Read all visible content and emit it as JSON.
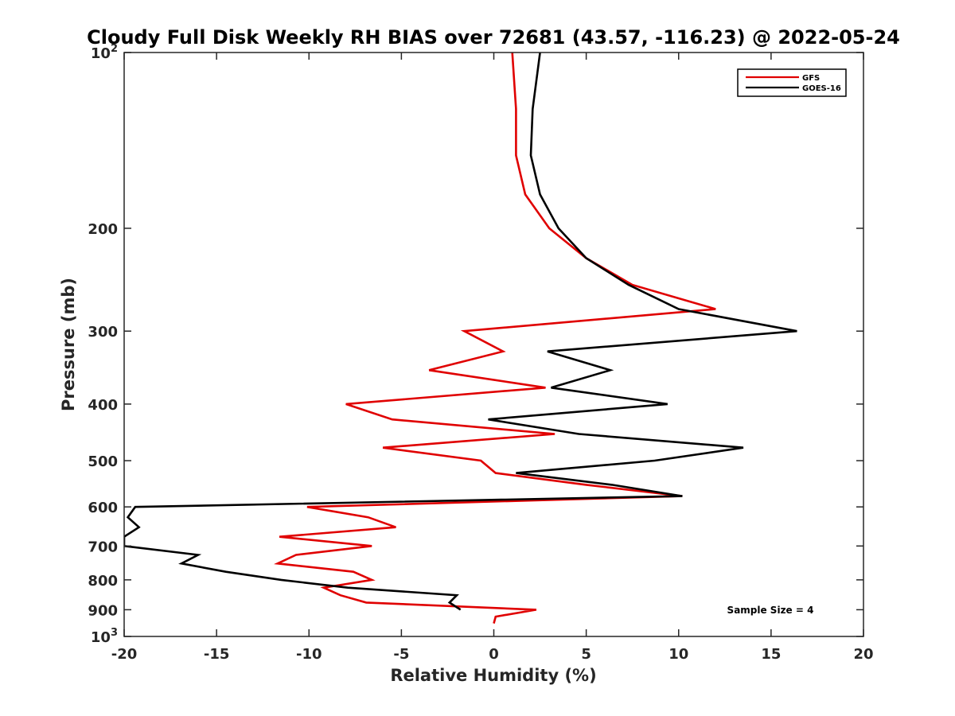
{
  "chart_data": {
    "type": "line",
    "title": "Cloudy Full Disk Weekly RH BIAS over 72681 (43.57, -116.23) @ 2022-05-24",
    "xlabel": "Relative Humidity (%)",
    "ylabel": "Pressure (mb)",
    "xlim": [
      -20,
      20
    ],
    "ylim": [
      100,
      1000
    ],
    "y_scale": "log",
    "y_reversed": true,
    "grid": false,
    "legend_position": "top-right",
    "x_ticks": [
      -20,
      -15,
      -10,
      -5,
      0,
      5,
      10,
      15,
      20
    ],
    "y_ticks": [
      {
        "value": 100,
        "base": "10",
        "exp": "2"
      },
      {
        "value": 200,
        "label": "200"
      },
      {
        "value": 300,
        "label": "300"
      },
      {
        "value": 400,
        "label": "400"
      },
      {
        "value": 500,
        "label": "500"
      },
      {
        "value": 600,
        "label": "600"
      },
      {
        "value": 700,
        "label": "700"
      },
      {
        "value": 800,
        "label": "800"
      },
      {
        "value": 900,
        "label": "900"
      },
      {
        "value": 1000,
        "base": "10",
        "exp": "3"
      }
    ],
    "series": [
      {
        "name": "GFS",
        "color": "#e00000",
        "points": [
          [
            1.0,
            100
          ],
          [
            1.2,
            125
          ],
          [
            1.2,
            150
          ],
          [
            1.7,
            175
          ],
          [
            3.0,
            200
          ],
          [
            5.0,
            225
          ],
          [
            7.5,
            250
          ],
          [
            12.0,
            275
          ],
          [
            -1.6,
            300
          ],
          [
            0.5,
            325
          ],
          [
            -3.5,
            350
          ],
          [
            2.8,
            375
          ],
          [
            -8.0,
            400
          ],
          [
            -5.5,
            425
          ],
          [
            3.3,
            450
          ],
          [
            -6.0,
            475
          ],
          [
            -0.7,
            500
          ],
          [
            0.1,
            525
          ],
          [
            5.0,
            550
          ],
          [
            10.2,
            575
          ],
          [
            -10.1,
            600
          ],
          [
            -6.8,
            625
          ],
          [
            -5.3,
            650
          ],
          [
            -11.6,
            675
          ],
          [
            -6.6,
            700
          ],
          [
            -10.7,
            725
          ],
          [
            -11.7,
            750
          ],
          [
            -7.6,
            775
          ],
          [
            -6.6,
            800
          ],
          [
            -9.2,
            825
          ],
          [
            -8.3,
            850
          ],
          [
            -6.9,
            875
          ],
          [
            2.3,
            900
          ],
          [
            0.1,
            925
          ],
          [
            0.0,
            950
          ]
        ]
      },
      {
        "name": "GOES-16",
        "color": "#000000",
        "points": [
          [
            2.5,
            100
          ],
          [
            2.1,
            125
          ],
          [
            2.0,
            150
          ],
          [
            2.5,
            175
          ],
          [
            3.5,
            200
          ],
          [
            5.0,
            225
          ],
          [
            7.3,
            250
          ],
          [
            10.0,
            275
          ],
          [
            16.4,
            300
          ],
          [
            2.9,
            325
          ],
          [
            6.3,
            350
          ],
          [
            3.1,
            375
          ],
          [
            9.4,
            400
          ],
          [
            -0.3,
            425
          ],
          [
            4.6,
            450
          ],
          [
            13.5,
            475
          ],
          [
            8.7,
            500
          ],
          [
            1.2,
            525
          ],
          [
            6.4,
            550
          ],
          [
            10.2,
            575
          ],
          [
            -19.4,
            600
          ],
          [
            -19.8,
            625
          ],
          [
            -19.2,
            650
          ],
          [
            -20.0,
            675
          ],
          [
            -20.0,
            700
          ],
          [
            -16.0,
            725
          ],
          [
            -16.9,
            750
          ],
          [
            -14.5,
            775
          ],
          [
            -11.5,
            800
          ],
          [
            -7.9,
            825
          ],
          [
            -2.0,
            850
          ],
          [
            -2.4,
            875
          ],
          [
            -1.8,
            900
          ]
        ]
      }
    ],
    "annotations": {
      "sample_size": "Sample Size = 4"
    }
  }
}
